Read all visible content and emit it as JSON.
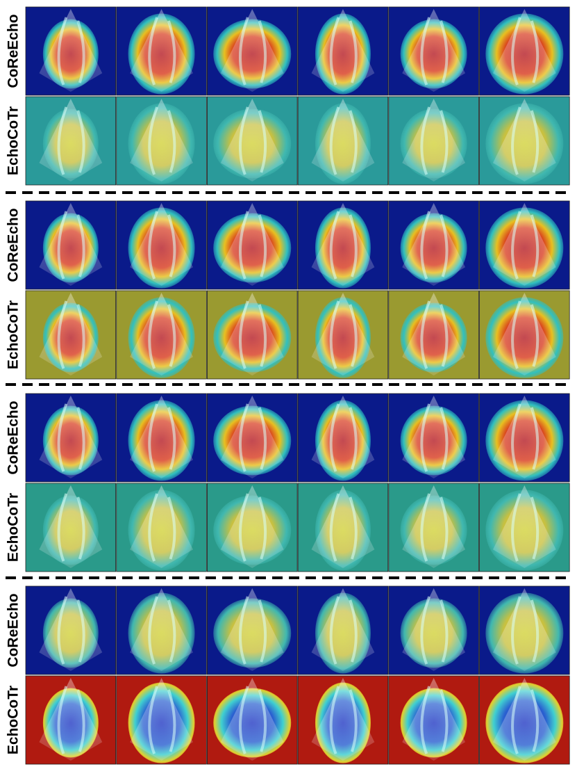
{
  "groups": [
    {
      "rows": [
        {
          "label": "CoReEcho"
        },
        {
          "label": "EchoCoTr"
        }
      ]
    },
    {
      "rows": [
        {
          "label": "CoReEcho"
        },
        {
          "label": "EchoCoTr"
        }
      ]
    },
    {
      "rows": [
        {
          "label": "CoReEcho"
        },
        {
          "label": "EchoCoTr"
        }
      ]
    },
    {
      "rows": [
        {
          "label": "CoReEcho"
        },
        {
          "label": "EchoCoTr"
        }
      ]
    }
  ]
}
